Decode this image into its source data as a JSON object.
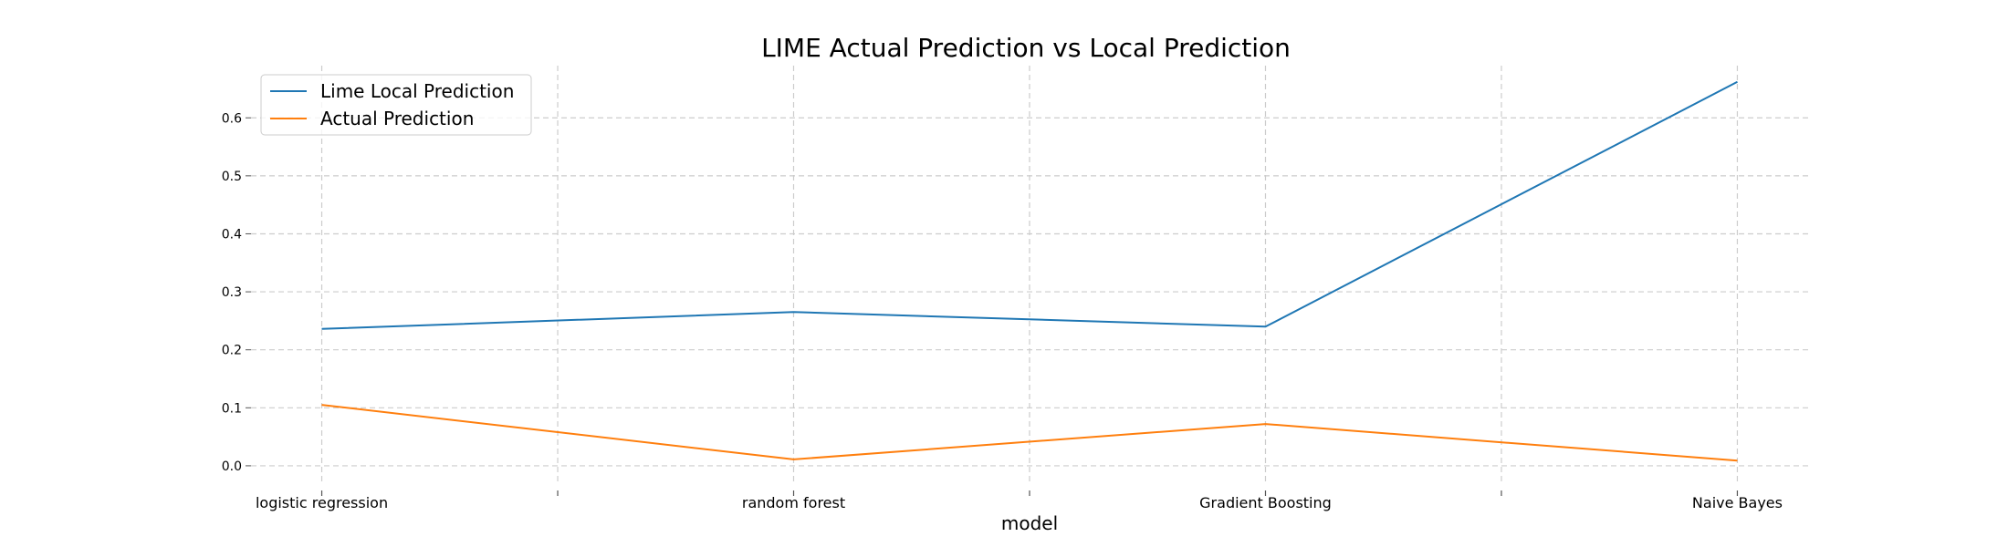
{
  "chart_data": {
    "type": "line",
    "title": "LIME Actual Prediction vs Local Prediction",
    "xlabel": "model",
    "ylabel": "",
    "categories": [
      "logistic regression",
      "random forest",
      "Gradient Boosting",
      "Naive Bayes"
    ],
    "x_ticks": [
      0,
      0.5,
      1,
      1.5,
      2,
      2.5,
      3
    ],
    "y_ticks": [
      0.0,
      0.1,
      0.2,
      0.3,
      0.4,
      0.5,
      0.6
    ],
    "y_tick_labels": [
      "0.0",
      "0.1",
      "0.2",
      "0.3",
      "0.4",
      "0.5",
      "0.6"
    ],
    "xlim": [
      -0.15,
      3.15
    ],
    "ylim": [
      -0.03,
      0.69
    ],
    "grid": true,
    "legend_position": "top-left",
    "series": [
      {
        "name": "Lime Local Prediction",
        "color": "#1f77b4",
        "values": [
          0.236,
          0.265,
          0.24,
          0.662
        ]
      },
      {
        "name": "Actual Prediction",
        "color": "#ff7f0e",
        "values": [
          0.105,
          0.011,
          0.072,
          0.009
        ]
      }
    ]
  }
}
